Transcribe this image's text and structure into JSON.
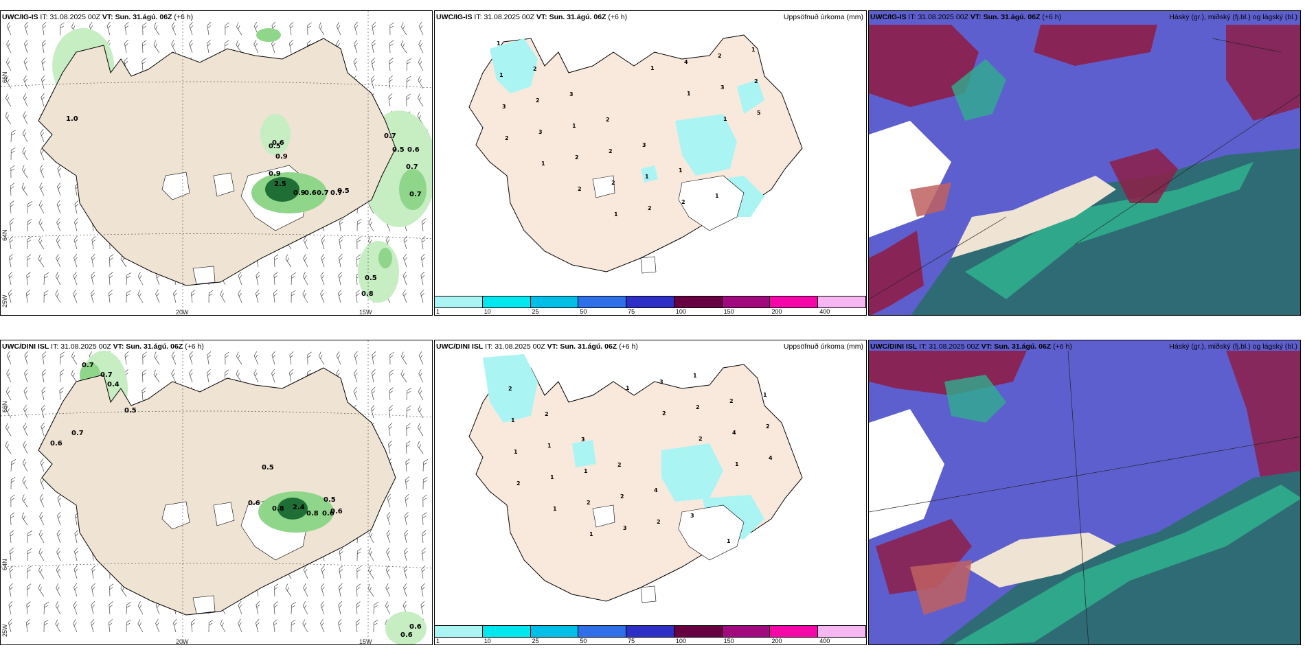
{
  "rows": [
    {
      "model": "UWC/IG-IS",
      "wind_values": [
        "1.0",
        "0.6",
        "0.5",
        "0.9",
        "0.9",
        "2.5",
        "0.9",
        "0.6",
        "0.7",
        "0.7",
        "0.5",
        "0.7",
        "0.5",
        "0.6",
        "0.7",
        "0.7",
        "0.5",
        "0.8"
      ],
      "precip_values": [
        "1",
        "2",
        "3",
        "2",
        "3",
        "1",
        "1",
        "1",
        "1",
        "2",
        "1",
        "2",
        "1",
        "2",
        "2",
        "2",
        "3",
        "3",
        "2",
        "2",
        "2",
        "4",
        "3",
        "5",
        "2",
        "1",
        "2",
        "1",
        "1",
        "1",
        "1"
      ]
    },
    {
      "model": "UWC/DINI ISL",
      "wind_values": [
        "0.7",
        "0.7",
        "0.4",
        "0.5",
        "0.7",
        "0.6",
        "0.5",
        "0.6",
        "0.8",
        "2.4",
        "0.8",
        "0.6",
        "0.5",
        "0.6",
        "0.6",
        "0.6"
      ],
      "precip_values": [
        "2",
        "2",
        "3",
        "2",
        "4",
        "3",
        "1",
        "1",
        "1",
        "1",
        "1",
        "2",
        "2",
        "1",
        "2",
        "2",
        "1",
        "1",
        "2",
        "3",
        "3",
        "2",
        "4",
        "4",
        "2",
        "1",
        "1",
        "1",
        "2",
        "2",
        "1"
      ]
    }
  ],
  "run_info": {
    "it_label": "IT:",
    "it_value": "31.08.2025 00Z",
    "vt_label": "VT:",
    "vt_value": "Sun. 31.ágú. 06Z",
    "lead": "(+6 h)"
  },
  "precip_title": "Uppsöfnuð úrkoma (mm)",
  "cloud_title": "Háský (gr.), miðský (fj.bl.) og lágský (bl.)",
  "axis_labels": {
    "lon20": "20W",
    "lon15": "15W",
    "lat66": "66N",
    "lat64": "64N",
    "lon25": "25W"
  },
  "colorbar": {
    "ticks": [
      "1",
      "10",
      "25",
      "50",
      "75",
      "100",
      "150",
      "200",
      "400"
    ],
    "colors": [
      "#aaf4f4",
      "#00e7ef",
      "#00bfe7",
      "#2f6fe8",
      "#2e2fc6",
      "#670041",
      "#a10a7f",
      "#f406a8",
      "#f6b6f2"
    ]
  },
  "colors": {
    "land": "#efe3d3",
    "coast": "#000000",
    "green_light": "#c7edc3",
    "green_mid": "#8fd68a",
    "green_dark": "#1f6e35",
    "cloud_high": "#5e5fcf",
    "cloud_mid": "#8e1f48",
    "cloud_low": "#2fae8d",
    "cloud_sea": "#2f6b74"
  }
}
